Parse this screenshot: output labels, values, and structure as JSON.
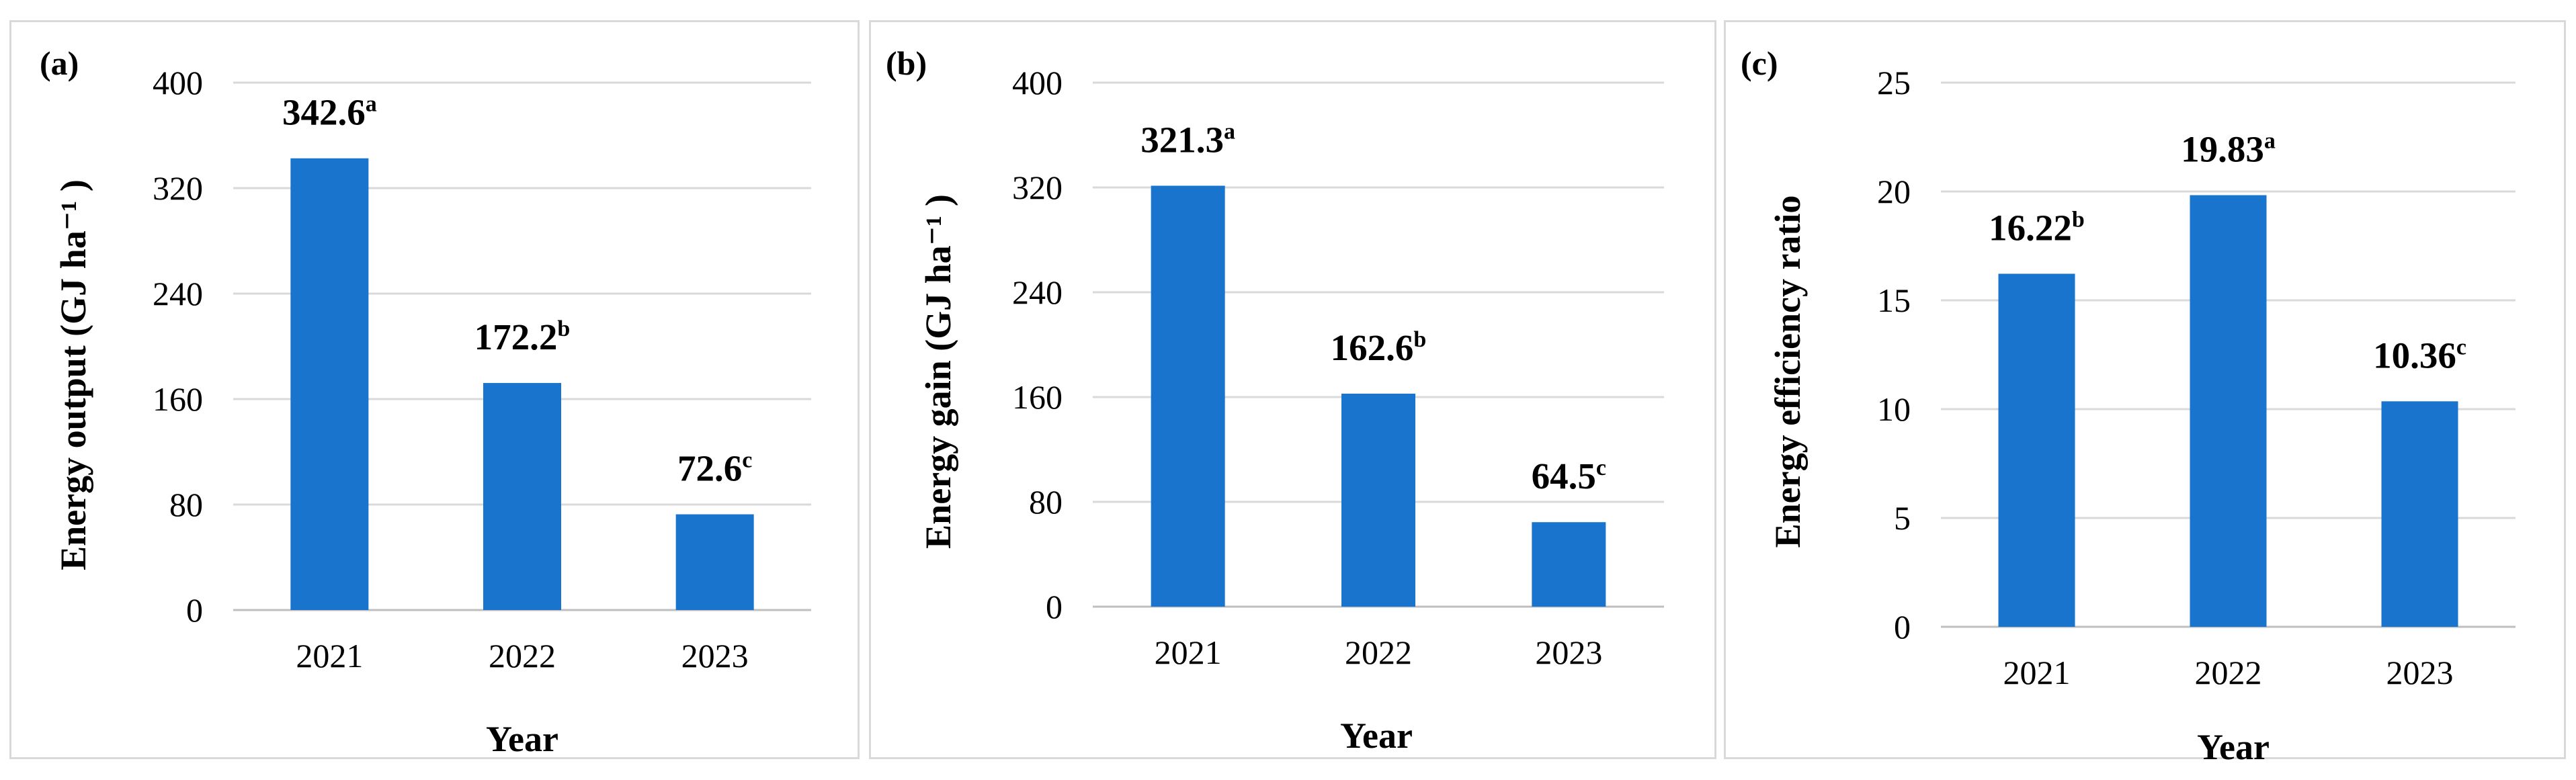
{
  "colors": {
    "bar": "#1874CD",
    "grid": "#D9D9D9"
  },
  "chart_data": [
    {
      "type": "bar",
      "panel": "(a)",
      "categories": [
        "2021",
        "2022",
        "2023"
      ],
      "values": [
        342.6,
        172.2,
        72.6
      ],
      "value_labels": [
        "342.6",
        "172.2",
        "72.6"
      ],
      "superscripts": [
        "a",
        "b",
        "c"
      ],
      "xlabel": "Year",
      "ylabel": "Energy output (GJ ha⁻¹ )",
      "ylim": [
        0,
        400
      ],
      "yticks": [
        0,
        80,
        160,
        240,
        320,
        400
      ],
      "grid": true,
      "legend": "none"
    },
    {
      "type": "bar",
      "panel": "(b)",
      "categories": [
        "2021",
        "2022",
        "2023"
      ],
      "values": [
        321.3,
        162.6,
        64.5
      ],
      "value_labels": [
        "321.3",
        "162.6",
        "64.5"
      ],
      "superscripts": [
        "a",
        "b",
        "c"
      ],
      "xlabel": "Year",
      "ylabel": "Energy gain  (GJ ha⁻¹ )",
      "ylim": [
        0,
        400
      ],
      "yticks": [
        0,
        80,
        160,
        240,
        320,
        400
      ],
      "grid": true,
      "legend": "none"
    },
    {
      "type": "bar",
      "panel": "(c)",
      "categories": [
        "2021",
        "2022",
        "2023"
      ],
      "values": [
        16.22,
        19.83,
        10.36
      ],
      "value_labels": [
        "16.22",
        "19.83",
        "10.36"
      ],
      "superscripts": [
        "b",
        "a",
        "c"
      ],
      "xlabel": "Year",
      "ylabel": "Energy efficiency ratio",
      "ylim": [
        0,
        25
      ],
      "yticks": [
        0,
        5,
        10,
        15,
        20,
        25
      ],
      "grid": true,
      "legend": "none"
    }
  ]
}
